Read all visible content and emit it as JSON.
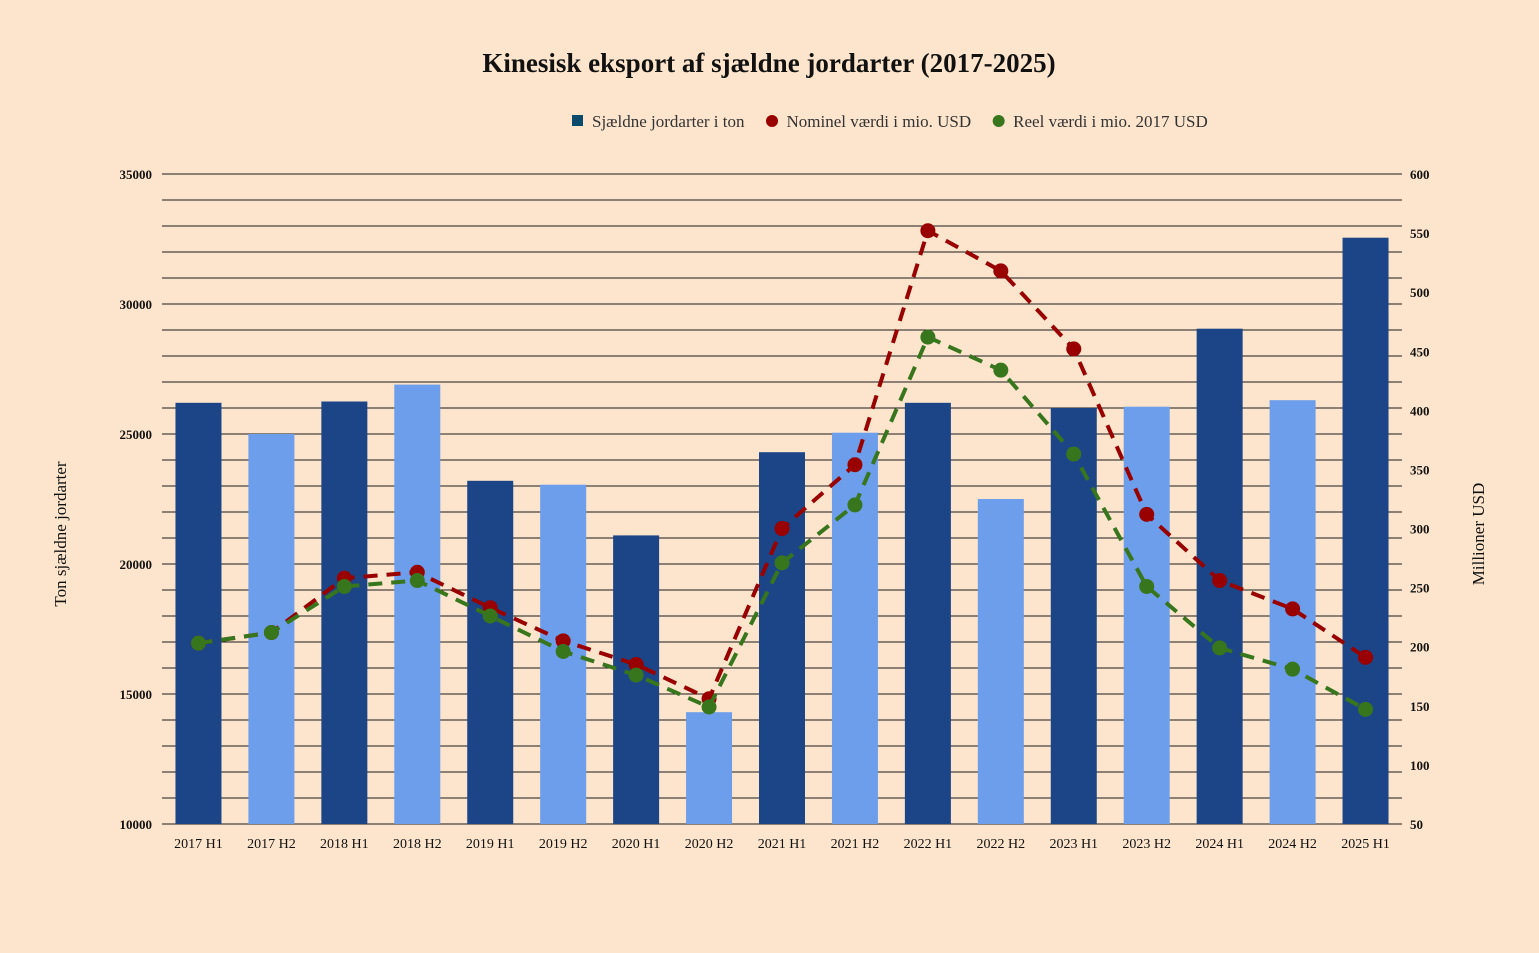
{
  "chart_data": {
    "type": "bar",
    "title": "Kinesisk eksport af sjældne jordarter (2017-2025)",
    "categories": [
      "2017 H1",
      "2017 H2",
      "2018 H1",
      "2018 H2",
      "2019 H1",
      "2019 H2",
      "2020 H1",
      "2020 H2",
      "2021 H1",
      "2021 H2",
      "2022 H1",
      "2022 H2",
      "2023 H1",
      "2023 H2",
      "2024 H1",
      "2024 H2",
      "2025 H1"
    ],
    "series": [
      {
        "name": "Sjældne jordarter i ton",
        "type": "bar",
        "axis": "left",
        "color": "#1c4587",
        "color_alt": "#6d9eeb",
        "values": [
          26200,
          25000,
          26250,
          26900,
          23200,
          23050,
          21100,
          14300,
          24300,
          25050,
          26200,
          22500,
          26000,
          26050,
          29050,
          26300,
          32550
        ]
      },
      {
        "name": "Nominel værdi i mio. USD",
        "type": "line",
        "axis": "right",
        "color": "#990000",
        "values": [
          203,
          212,
          258,
          263,
          233,
          205,
          185,
          156,
          300,
          354,
          552,
          518,
          452,
          312,
          256,
          232,
          191
        ]
      },
      {
        "name": "Reel værdi i mio. 2017 USD",
        "type": "line",
        "axis": "right",
        "color": "#38761d",
        "values": [
          203,
          212,
          251,
          256,
          226,
          196,
          176,
          149,
          271,
          320,
          462,
          434,
          363,
          251,
          199,
          181,
          147
        ]
      }
    ],
    "ylabel": "Ton sjældne jordarter",
    "y2label": "Millioner USD",
    "ylim": [
      10000,
      35000
    ],
    "y2lim": [
      50,
      600
    ],
    "yticks": [
      10000,
      15000,
      20000,
      25000,
      30000,
      35000
    ],
    "y2ticks": [
      50,
      100,
      150,
      200,
      250,
      300,
      350,
      400,
      450,
      500,
      550,
      600
    ],
    "legend_position": "top-right"
  }
}
